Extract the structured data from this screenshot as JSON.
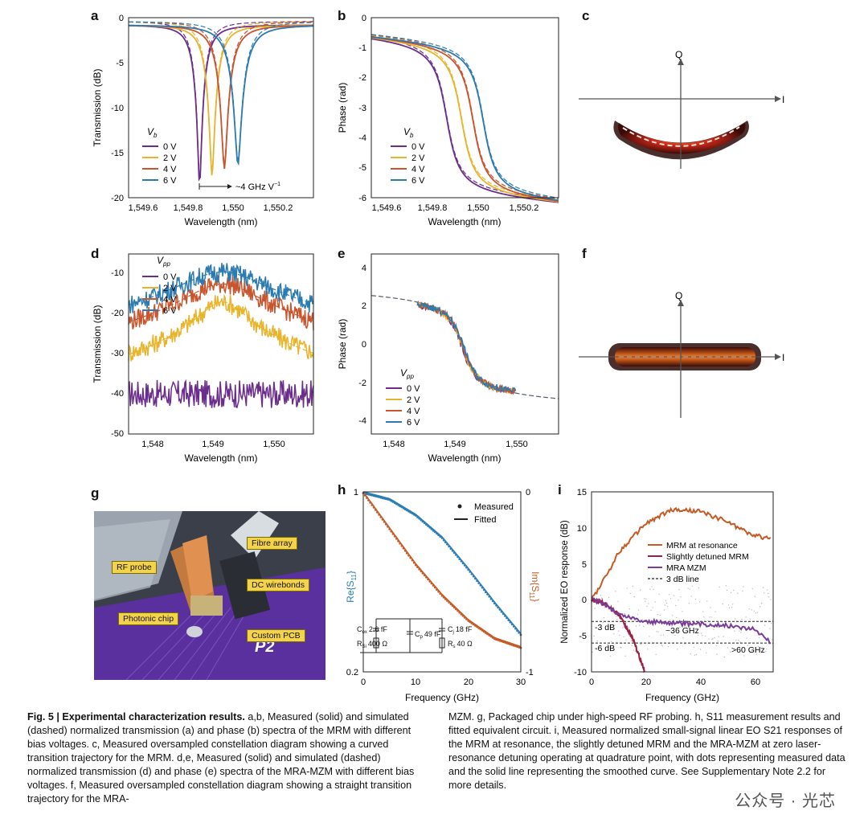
{
  "colors": {
    "c0": "#6b2d8c",
    "c2": "#e8b42c",
    "c4": "#c8552e",
    "c6": "#2c7bb0",
    "measured_blue": "#2b7db4",
    "measured_orange": "#c65a25",
    "rf_purple": "#7a3e9a",
    "rf_red": "#9c1f44"
  },
  "panels": {
    "a": {
      "label": "a",
      "xlabel": "Wavelength (nm)",
      "ylabel": "Transmission (dB)",
      "xticks": [
        "1,549.6",
        "1,549.8",
        "1,550",
        "1,550.2"
      ],
      "yticks": [
        "0",
        "-5",
        "-10",
        "-15",
        "-20"
      ],
      "legend_title_main": "V",
      "legend_title_sub": "b",
      "legend": [
        "0 V",
        "2 V",
        "4 V",
        "6 V"
      ],
      "annotation": "~4 GHz V"
    },
    "b": {
      "label": "b",
      "xlabel": "Wavelength (nm)",
      "ylabel": "Phase (rad)",
      "xticks": [
        "1,549.6",
        "1,549.8",
        "1,550",
        "1,550.2"
      ],
      "yticks": [
        "0",
        "-1",
        "-2",
        "-3",
        "-4",
        "-5",
        "-6"
      ],
      "legend_title_main": "V",
      "legend_title_sub": "b",
      "legend": [
        "0 V",
        "2 V",
        "4 V",
        "6 V"
      ]
    },
    "c": {
      "label": "c",
      "axis_q": "Q",
      "axis_i": "I"
    },
    "d": {
      "label": "d",
      "xlabel": "Wavelength (nm)",
      "ylabel": "Transmission (dB)",
      "xticks": [
        "1,548",
        "1,549",
        "1,550"
      ],
      "yticks": [
        "-10",
        "-20",
        "-30",
        "-40",
        "-50"
      ],
      "legend_title_main": "V",
      "legend_title_sub": "pp",
      "legend": [
        "0 V",
        "2 V",
        "4 V",
        "6 V"
      ]
    },
    "e": {
      "label": "e",
      "xlabel": "Wavelength (nm)",
      "ylabel": "Phase (rad)",
      "xticks": [
        "1,548",
        "1,549",
        "1,550"
      ],
      "yticks": [
        "4",
        "2",
        "0",
        "-2",
        "-4"
      ],
      "legend_title_main": "V",
      "legend_title_sub": "pp",
      "legend": [
        "0 V",
        "2 V",
        "4 V",
        "6 V"
      ]
    },
    "f": {
      "label": "f",
      "axis_q": "Q",
      "axis_i": "I"
    },
    "g": {
      "label": "g",
      "labels": {
        "fibre": "Fibre array",
        "rf": "RF probe",
        "dc": "DC wirebonds",
        "chip": "Photonic chip",
        "pcb": "Custom PCB",
        "board": "P2"
      }
    },
    "h": {
      "label": "h",
      "xlabel": "Frequency (GHz)",
      "ylabel_left_main": "Re{S",
      "ylabel_left_sub": "11",
      "ylabel_left_end": "}",
      "ylabel_right_main": "Im{S",
      "ylabel_right_sub": "11",
      "ylabel_right_end": "}",
      "xticks": [
        "0",
        "10",
        "20",
        "30"
      ],
      "ytick_top_left": "1",
      "ytick_bottom_left": "0.2",
      "ytick_top_right": "0",
      "ytick_bottom_right": "-1",
      "legend_measured": "Measured",
      "legend_fitted": "Fitted",
      "circuit": {
        "cox": "2.6 fF",
        "cox_name": "C",
        "cox_sub": "ox",
        "rsi": "400 Ω",
        "rsi_name": "R",
        "rsi_sub": "Si",
        "cp": "49 fF",
        "cp_name": "C",
        "cp_sub": "p",
        "cj": "18 fF",
        "cj_name": "C",
        "cj_sub": "j",
        "rs": "40 Ω",
        "rs_name": "R",
        "rs_sub": "s"
      }
    },
    "i": {
      "label": "i",
      "xlabel": "Frequency (GHz)",
      "ylabel": "Normalized EO response (dB)",
      "xticks": [
        "0",
        "20",
        "40",
        "60"
      ],
      "yticks": [
        "15",
        "10",
        "5",
        "0",
        "-5",
        "-10"
      ],
      "legend": [
        "MRM at resonance",
        "Slightly detuned MRM",
        "MRA MZM",
        "3 dB line"
      ],
      "ann_3db": "-3 dB",
      "ann_6db": "-6 dB",
      "ann_36": "~36 GHz",
      "ann_60": ">60 GHz"
    }
  },
  "caption": {
    "fig": "Fig. 5 | Experimental characterization results.",
    "left_1": " a,b, Measured (solid) and simulated (dashed) normalized transmission (a) and phase (b) spectra of the MRM with different bias voltages. c, Measured oversampled constellation diagram showing a curved transition trajectory for the MRM. d,e, Measured (solid) and simulated (dashed) normalized transmission (d) and phase (e) spectra of the MRA-MZM with different bias voltages. f, Measured oversampled constellation diagram showing a straight transition trajectory for the MRA-",
    "right_1": "MZM. g, Packaged chip under high-speed RF probing. h, S11 measurement results and fitted equivalent circuit. i, Measured normalized small-signal linear EO S21 responses of the MRM at resonance, the slightly detuned MRM and the MRA-MZM at zero laser-resonance detuning operating at quadrature point, with dots representing measured data and the solid line representing the smoothed curve. See Supplementary Note 2.2 for more details."
  },
  "watermark": "公众号 · 光芯",
  "chart_data": [
    {
      "type": "line",
      "panel": "a",
      "title": "",
      "xlabel": "Wavelength (nm)",
      "ylabel": "Transmission (dB)",
      "xlim": [
        1549.53,
        1550.35
      ],
      "ylim": [
        -20,
        0
      ],
      "series": [
        {
          "name": "0 V",
          "center": 1549.845,
          "min_db": -17.8
        },
        {
          "name": "2 V",
          "center": 1549.9,
          "min_db": -16.8
        },
        {
          "name": "4 V",
          "center": 1549.955,
          "min_db": -16.0
        },
        {
          "name": "6 V",
          "center": 1550.015,
          "min_db": -15.5
        }
      ]
    },
    {
      "type": "line",
      "panel": "b",
      "xlabel": "Wavelength (nm)",
      "ylabel": "Phase (rad)",
      "xlim": [
        1549.53,
        1550.35
      ],
      "ylim": [
        -6,
        0
      ],
      "series": [
        {
          "name": "0 V",
          "center": 1549.86
        },
        {
          "name": "2 V",
          "center": 1549.925
        },
        {
          "name": "4 V",
          "center": 1549.975
        },
        {
          "name": "6 V",
          "center": 1550.02
        }
      ]
    },
    {
      "type": "line",
      "panel": "d",
      "xlabel": "Wavelength (nm)",
      "ylabel": "Transmission (dB)",
      "xlim": [
        1547.6,
        1550.65
      ],
      "ylim": [
        -50,
        -5
      ],
      "series": [
        {
          "name": "0 V",
          "peak_db": -38
        },
        {
          "name": "2 V",
          "peak_db": -17
        },
        {
          "name": "4 V",
          "peak_db": -12.5
        },
        {
          "name": "6 V",
          "peak_db": -9.5
        }
      ]
    },
    {
      "type": "line",
      "panel": "e",
      "xlabel": "Wavelength (nm)",
      "ylabel": "Phase (rad)",
      "xlim": [
        1547.6,
        1550.65
      ],
      "ylim": [
        -5,
        5
      ],
      "series": [
        {
          "name": "0 V"
        },
        {
          "name": "2 V"
        },
        {
          "name": "4 V"
        },
        {
          "name": "6 V"
        }
      ]
    },
    {
      "type": "line",
      "panel": "h",
      "xlabel": "Frequency (GHz)",
      "xlim": [
        0,
        30
      ],
      "ylim_left": [
        0.2,
        1
      ],
      "ylim_right": [
        -1,
        0
      ],
      "series": [
        {
          "name": "Re{S11}",
          "x": [
            0,
            5,
            10,
            15,
            20,
            25,
            30
          ],
          "values": [
            1.0,
            0.97,
            0.9,
            0.8,
            0.66,
            0.51,
            0.37
          ]
        },
        {
          "name": "Im{S11}",
          "x": [
            0,
            5,
            10,
            15,
            20,
            25,
            30
          ],
          "values": [
            0.0,
            -0.2,
            -0.4,
            -0.57,
            -0.71,
            -0.81,
            -0.86
          ]
        }
      ]
    },
    {
      "type": "line",
      "panel": "i",
      "xlabel": "Frequency (GHz)",
      "ylabel": "Normalized EO response (dB)",
      "xlim": [
        0,
        68
      ],
      "ylim": [
        -10,
        15
      ],
      "series": [
        {
          "name": "MRM at resonance",
          "x": [
            0,
            5,
            10,
            20,
            30,
            40,
            50,
            60,
            67
          ],
          "values": [
            0,
            3,
            6.5,
            10.5,
            12.5,
            12.3,
            11,
            9,
            8.5
          ]
        },
        {
          "name": "Slightly detuned MRM",
          "x": [
            0,
            5,
            10,
            15,
            18,
            20
          ],
          "values": [
            0,
            -0.5,
            -2,
            -5,
            -8,
            -10
          ]
        },
        {
          "name": "MRA MZM",
          "x": [
            0,
            5,
            10,
            20,
            30,
            40,
            50,
            60,
            65,
            67
          ],
          "values": [
            0,
            -0.5,
            -2,
            -3,
            -3.2,
            -3.4,
            -3.5,
            -4,
            -5,
            -6
          ]
        },
        {
          "name": "3 dB line",
          "x": [
            0,
            67
          ],
          "values": [
            -3,
            -3
          ]
        }
      ]
    }
  ]
}
